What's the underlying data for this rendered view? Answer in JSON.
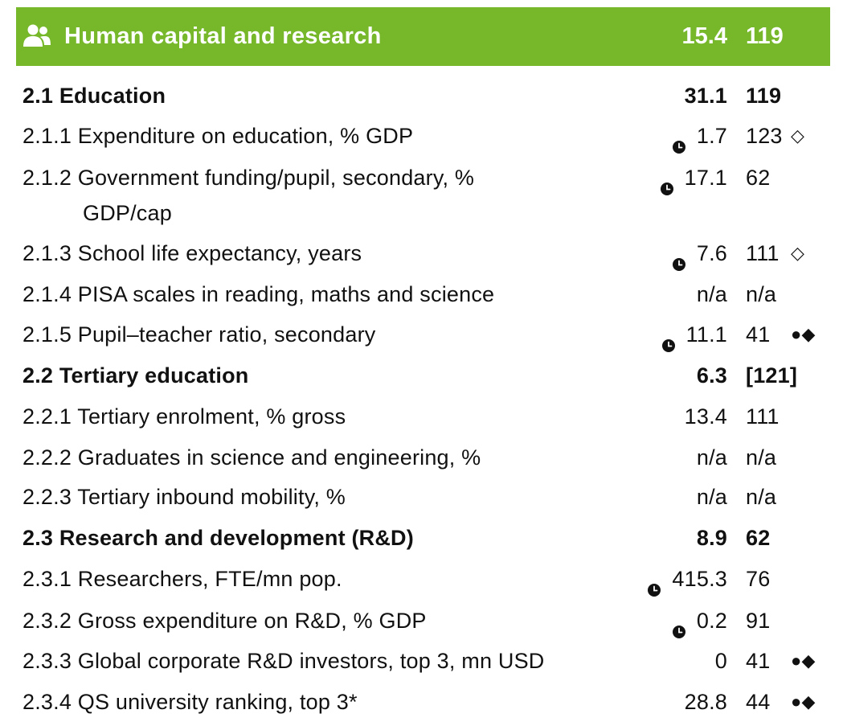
{
  "header": {
    "title": "Human capital and research",
    "score": "15.4",
    "rank": "119",
    "icon": "people-icon",
    "color": "#76b82a"
  },
  "rows": [
    {
      "label": "2.1 Education",
      "score": "31.1",
      "rank": "119",
      "flag": "",
      "clock": false,
      "section": true
    },
    {
      "label": "2.1.1 Expenditure on education, % GDP",
      "score": "1.7",
      "rank": "123",
      "flag": "◇",
      "clock": true
    },
    {
      "label": "2.1.2 Government funding/pupil, secondary, %",
      "cont": "GDP/cap",
      "score": "17.1",
      "rank": "62",
      "flag": "",
      "clock": true
    },
    {
      "label": "2.1.3 School life expectancy, years",
      "score": "7.6",
      "rank": "111",
      "flag": "◇",
      "clock": true
    },
    {
      "label": "2.1.4 PISA scales in reading, maths and science",
      "score": "n/a",
      "rank": "n/a",
      "flag": "",
      "clock": false
    },
    {
      "label": "2.1.5 Pupil–teacher ratio, secondary",
      "score": "11.1",
      "rank": "41",
      "flag": "●◆",
      "clock": true
    },
    {
      "label": "2.2 Tertiary education",
      "score": "6.3",
      "rank": "[121]",
      "flag": "",
      "clock": false,
      "section": true
    },
    {
      "label": "2.2.1 Tertiary enrolment, % gross",
      "score": "13.4",
      "rank": "111",
      "flag": "",
      "clock": false
    },
    {
      "label": "2.2.2 Graduates in science and engineering, %",
      "score": "n/a",
      "rank": "n/a",
      "flag": "",
      "clock": false
    },
    {
      "label": "2.2.3 Tertiary inbound mobility, %",
      "score": "n/a",
      "rank": "n/a",
      "flag": "",
      "clock": false
    },
    {
      "label": "2.3 Research and development (R&D)",
      "score": "8.9",
      "rank": "62",
      "flag": "",
      "clock": false,
      "section": true
    },
    {
      "label": "2.3.1 Researchers, FTE/mn pop.",
      "score": "415.3",
      "rank": "76",
      "flag": "",
      "clock": true
    },
    {
      "label": "2.3.2 Gross expenditure on R&D, % GDP",
      "score": "0.2",
      "rank": "91",
      "flag": "",
      "clock": true
    },
    {
      "label": "2.3.3 Global corporate R&D investors, top 3, mn USD",
      "score": "0",
      "rank": "41",
      "flag": "●◆",
      "clock": false
    },
    {
      "label": "2.3.4 QS university ranking, top 3*",
      "score": "28.8",
      "rank": "44",
      "flag": "●◆",
      "clock": false
    }
  ]
}
